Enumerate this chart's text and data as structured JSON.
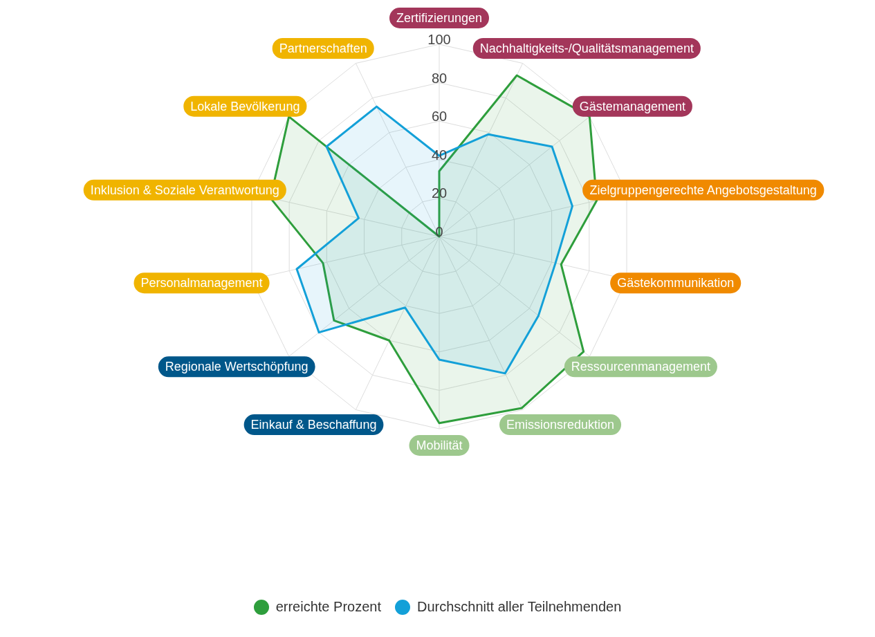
{
  "chart_data": {
    "type": "radar",
    "categories": [
      "Zertifizierungen",
      "Nachhaltigkeits-/Qualitätsmanagement",
      "Gästemanagement",
      "Zielgruppengerechte Angebotsgestaltung",
      "Gästekommunikation",
      "Ressourcenmanagement",
      "Emissionsreduktion",
      "Mobilität",
      "Einkauf & Beschaffung",
      "Regionale Wertschöpfung",
      "Personalmanagement",
      "Inklusion & Soziale Verantwortung",
      "Lokale Bevölkerung",
      "Partnerschaften"
    ],
    "colors": [
      "#a3365a",
      "#a3365a",
      "#a3365a",
      "#f08a00",
      "#f08a00",
      "#9dc88d",
      "#9dc88d",
      "#9dc88d",
      "#00578a",
      "#00578a",
      "#f0b400",
      "#f0b400",
      "#f0b400",
      "#f0b400"
    ],
    "series": [
      {
        "name": "erreichte Prozent",
        "color": "#2e9e3c",
        "values": [
          34,
          93,
          100,
          84,
          65,
          96,
          99,
          97,
          60,
          70,
          62,
          90,
          100,
          0
        ]
      },
      {
        "name": "Durchschnitt aller Teilnehmenden",
        "color": "#13a0d8",
        "values": [
          42,
          59,
          75,
          71,
          62,
          66,
          79,
          64,
          41,
          80,
          76,
          43,
          75,
          75
        ]
      }
    ],
    "ylim": [
      0,
      100
    ],
    "yticks": [
      0,
      20,
      40,
      60,
      80,
      100
    ],
    "grid": true,
    "legend": "bottom"
  }
}
